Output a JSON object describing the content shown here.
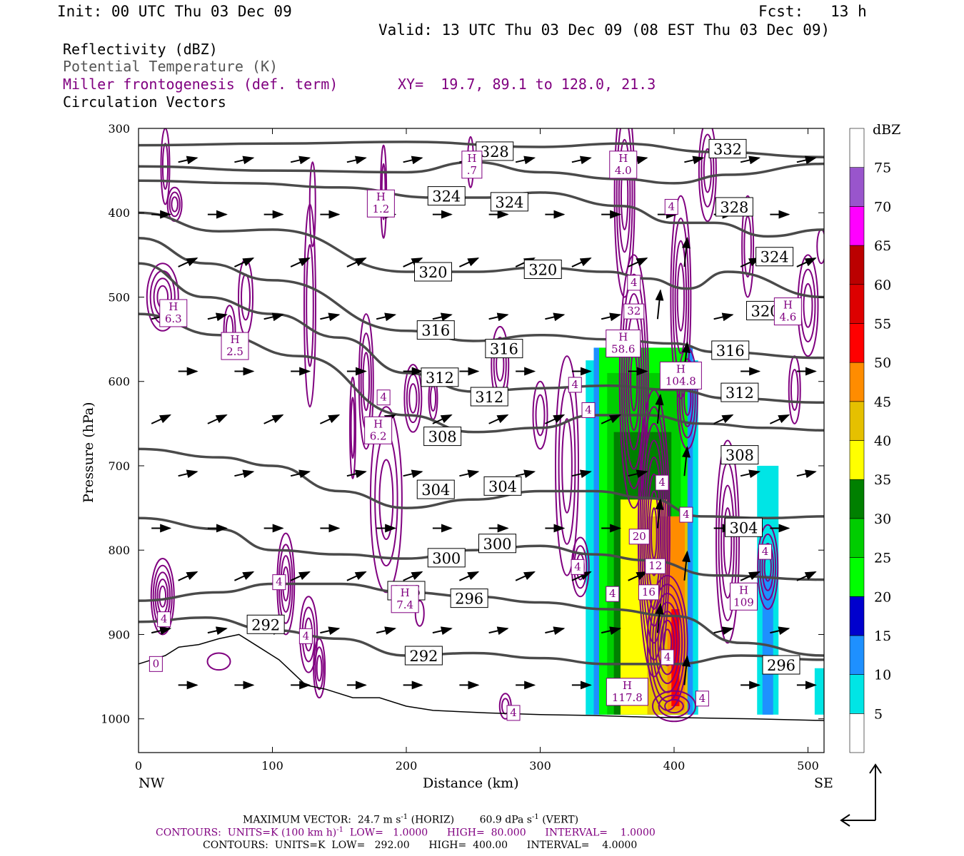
{
  "header": {
    "init": "Init: 00 UTC Thu 03 Dec 09",
    "fcst": "Fcst:   13 h",
    "valid": "Valid: 13 UTC Thu 03 Dec 09 (08 EST Thu 03 Dec 09)"
  },
  "legend": {
    "reflectivity": "Reflectivity (dBZ)",
    "theta": "Potential Temperature (K)",
    "miller": "Miller frontogenesis (def. term)",
    "xy": "XY=  19.7, 89.1 to 128.0, 21.3",
    "vectors": "Circulation Vectors"
  },
  "footer": {
    "line1_a": "MAXIMUM VECTOR:  24.7 m s",
    "line1_b": "(HORIZ)        60.9 dPa s",
    "line1_c": "(VERT)",
    "line2": "CONTOURS:  UNITS=K (100 km h)",
    "line2_b": "  LOW=   1.0000      HIGH=  80.000      INTERVAL=    1.0000",
    "line3": "CONTOURS:  UNITS=K  LOW=   292.00      HIGH=  400.00      INTERVAL=    4.0000",
    "exp": "-1"
  },
  "colors": {
    "theta": "#4a4a4a",
    "miller": "#800080"
  },
  "chart_data": {
    "type": "heatmap",
    "xlabel": "Distance (km)",
    "ylabel": "Pressure (hPa)",
    "xlim": [
      0,
      512
    ],
    "ylim": [
      1040,
      300
    ],
    "x_ticks": [
      0,
      100,
      200,
      300,
      400,
      500
    ],
    "y_ticks": [
      300,
      400,
      500,
      600,
      700,
      800,
      900,
      1000
    ],
    "x_end_labels": {
      "left": "NW",
      "right": "SE"
    },
    "colorbar": {
      "title": "dBZ",
      "levels": [
        5,
        10,
        15,
        20,
        25,
        30,
        35,
        40,
        45,
        50,
        55,
        60,
        65,
        70,
        75
      ],
      "colors": [
        "#ffffff",
        "#00e5e5",
        "#1e90ff",
        "#0000cd",
        "#00ff00",
        "#00cd00",
        "#008000",
        "#ffff00",
        "#e5c000",
        "#ff8c00",
        "#ff0000",
        "#dd0000",
        "#bb0000",
        "#ff00ff",
        "#9955cc",
        "#ffffff"
      ]
    },
    "theta_contours": [
      {
        "label": "332",
        "points": [
          [
            0,
            320
          ],
          [
            100,
            318
          ],
          [
            200,
            316
          ],
          [
            300,
            322
          ],
          [
            360,
            318
          ],
          [
            430,
            328
          ],
          [
            512,
            334
          ]
        ]
      },
      {
        "label": "328",
        "points": [
          [
            0,
            345
          ],
          [
            100,
            350
          ],
          [
            200,
            352
          ],
          [
            250,
            340
          ],
          [
            300,
            352
          ],
          [
            360,
            360
          ],
          [
            400,
            365
          ],
          [
            440,
            355
          ],
          [
            512,
            342
          ]
        ]
      },
      {
        "label": "324",
        "points": [
          [
            0,
            362
          ],
          [
            80,
            365
          ],
          [
            150,
            370
          ],
          [
            220,
            382
          ],
          [
            260,
            382
          ],
          [
            300,
            376
          ],
          [
            360,
            392
          ],
          [
            400,
            412
          ],
          [
            430,
            412
          ],
          [
            470,
            428
          ],
          [
            512,
            420
          ]
        ]
      },
      {
        "label": "320",
        "points": [
          [
            0,
            400
          ],
          [
            60,
            422
          ],
          [
            100,
            420
          ],
          [
            200,
            470
          ],
          [
            250,
            470
          ],
          [
            300,
            465
          ],
          [
            350,
            470
          ],
          [
            380,
            478
          ],
          [
            410,
            490
          ],
          [
            440,
            470
          ],
          [
            512,
            500
          ]
        ]
      },
      {
        "label": "316",
        "points": [
          [
            0,
            430
          ],
          [
            50,
            460
          ],
          [
            100,
            480
          ],
          [
            200,
            540
          ],
          [
            250,
            552
          ],
          [
            300,
            545
          ],
          [
            350,
            550
          ],
          [
            400,
            555
          ],
          [
            430,
            565
          ],
          [
            512,
            572
          ]
        ]
      },
      {
        "label": "312",
        "points": [
          [
            0,
            460
          ],
          [
            50,
            500
          ],
          [
            100,
            520
          ],
          [
            150,
            548
          ],
          [
            200,
            590
          ],
          [
            250,
            612
          ],
          [
            300,
            608
          ],
          [
            350,
            605
          ],
          [
            400,
            610
          ],
          [
            440,
            620
          ],
          [
            512,
            625
          ]
        ]
      },
      {
        "label": "308",
        "points": [
          [
            0,
            520
          ],
          [
            60,
            545
          ],
          [
            120,
            570
          ],
          [
            200,
            640
          ],
          [
            250,
            660
          ],
          [
            300,
            655
          ],
          [
            340,
            640
          ],
          [
            380,
            640
          ],
          [
            420,
            650
          ],
          [
            470,
            655
          ],
          [
            512,
            658
          ]
        ]
      },
      {
        "label": "304",
        "points": [
          [
            0,
            680
          ],
          [
            60,
            690
          ],
          [
            100,
            700
          ],
          [
            150,
            730
          ],
          [
            200,
            750
          ],
          [
            250,
            740
          ],
          [
            300,
            730
          ],
          [
            340,
            730
          ],
          [
            380,
            738
          ],
          [
            420,
            760
          ],
          [
            470,
            762
          ],
          [
            512,
            760
          ]
        ]
      },
      {
        "label": "300",
        "points": [
          [
            0,
            762
          ],
          [
            60,
            775
          ],
          [
            100,
            800
          ],
          [
            150,
            805
          ],
          [
            200,
            810
          ],
          [
            250,
            800
          ],
          [
            300,
            795
          ],
          [
            340,
            805
          ],
          [
            380,
            812
          ],
          [
            430,
            830
          ],
          [
            512,
            835
          ]
        ]
      },
      {
        "label": "296",
        "points": [
          [
            0,
            860
          ],
          [
            60,
            850
          ],
          [
            100,
            840
          ],
          [
            150,
            840
          ],
          [
            200,
            850
          ],
          [
            250,
            855
          ],
          [
            300,
            862
          ],
          [
            350,
            870
          ],
          [
            400,
            878
          ],
          [
            450,
            910
          ],
          [
            512,
            925
          ]
        ]
      },
      {
        "label": "292",
        "points": [
          [
            0,
            885
          ],
          [
            50,
            880
          ],
          [
            100,
            895
          ],
          [
            150,
            905
          ],
          [
            200,
            925
          ],
          [
            250,
            922
          ],
          [
            300,
            928
          ],
          [
            350,
            935
          ],
          [
            400,
            935
          ],
          [
            450,
            925
          ],
          [
            512,
            930
          ]
        ]
      }
    ],
    "theta_labels": [
      {
        "text": "332",
        "x": 440,
        "y": 324
      },
      {
        "text": "328",
        "x": 266,
        "y": 327
      },
      {
        "text": "328",
        "x": 445,
        "y": 393
      },
      {
        "text": "324",
        "x": 230,
        "y": 380
      },
      {
        "text": "324",
        "x": 277,
        "y": 387
      },
      {
        "text": "324",
        "x": 475,
        "y": 452
      },
      {
        "text": "320",
        "x": 220,
        "y": 470
      },
      {
        "text": "320",
        "x": 302,
        "y": 467
      },
      {
        "text": "320",
        "x": 468,
        "y": 516
      },
      {
        "text": "316",
        "x": 222,
        "y": 539
      },
      {
        "text": "316",
        "x": 273,
        "y": 561
      },
      {
        "text": "316",
        "x": 442,
        "y": 563
      },
      {
        "text": "312",
        "x": 225,
        "y": 595
      },
      {
        "text": "312",
        "x": 262,
        "y": 618
      },
      {
        "text": "312",
        "x": 449,
        "y": 613
      },
      {
        "text": "308",
        "x": 227,
        "y": 665
      },
      {
        "text": "308",
        "x": 449,
        "y": 687
      },
      {
        "text": "304",
        "x": 222,
        "y": 728
      },
      {
        "text": "304",
        "x": 272,
        "y": 724
      },
      {
        "text": "304",
        "x": 452,
        "y": 773
      },
      {
        "text": "300",
        "x": 230,
        "y": 809
      },
      {
        "text": "300",
        "x": 268,
        "y": 792
      },
      {
        "text": "296",
        "x": 200,
        "y": 848
      },
      {
        "text": "296",
        "x": 247,
        "y": 857
      },
      {
        "text": "296",
        "x": 480,
        "y": 936
      },
      {
        "text": "292",
        "x": 95,
        "y": 888
      },
      {
        "text": "292",
        "x": 213,
        "y": 925
      }
    ],
    "miller_labels": [
      {
        "text": "H\n.7",
        "x": 249,
        "y": 343
      },
      {
        "text": "H\n1.2",
        "x": 181,
        "y": 389
      },
      {
        "text": "H\n4.0",
        "x": 362,
        "y": 343
      },
      {
        "text": "H\n6.3",
        "x": 26,
        "y": 519
      },
      {
        "text": "H\n2.5",
        "x": 72,
        "y": 558
      },
      {
        "text": "H\n6.2",
        "x": 179,
        "y": 658
      },
      {
        "text": "H\n58.6",
        "x": 362,
        "y": 555
      },
      {
        "text": "H\n104.8",
        "x": 405,
        "y": 593
      },
      {
        "text": "H\n7.4",
        "x": 199,
        "y": 858
      },
      {
        "text": "H\n109",
        "x": 452,
        "y": 855
      },
      {
        "text": "H\n117.8",
        "x": 365,
        "y": 968
      },
      {
        "text": "H\n4.6",
        "x": 485,
        "y": 517
      },
      {
        "text": "4",
        "x": 398,
        "y": 393
      },
      {
        "text": "4",
        "x": 370,
        "y": 483
      },
      {
        "text": "32",
        "x": 370,
        "y": 517
      },
      {
        "text": "4",
        "x": 326,
        "y": 604
      },
      {
        "text": "4",
        "x": 336,
        "y": 634
      },
      {
        "text": "4",
        "x": 183,
        "y": 619
      },
      {
        "text": "4",
        "x": 391,
        "y": 720
      },
      {
        "text": "4",
        "x": 409,
        "y": 758
      },
      {
        "text": "20",
        "x": 374,
        "y": 784
      },
      {
        "text": "12",
        "x": 386,
        "y": 819
      },
      {
        "text": "16",
        "x": 381,
        "y": 850
      },
      {
        "text": "4",
        "x": 354,
        "y": 852
      },
      {
        "text": "4",
        "x": 328,
        "y": 820
      },
      {
        "text": "4",
        "x": 468,
        "y": 802
      },
      {
        "text": "4",
        "x": 105,
        "y": 838
      },
      {
        "text": "4",
        "x": 19,
        "y": 882
      },
      {
        "text": "4",
        "x": 125,
        "y": 902
      },
      {
        "text": "4",
        "x": 395,
        "y": 927
      },
      {
        "text": "4",
        "x": 421,
        "y": 976
      },
      {
        "text": "4",
        "x": 280,
        "y": 993
      },
      {
        "text": "0",
        "x": 13,
        "y": 935
      }
    ]
  }
}
